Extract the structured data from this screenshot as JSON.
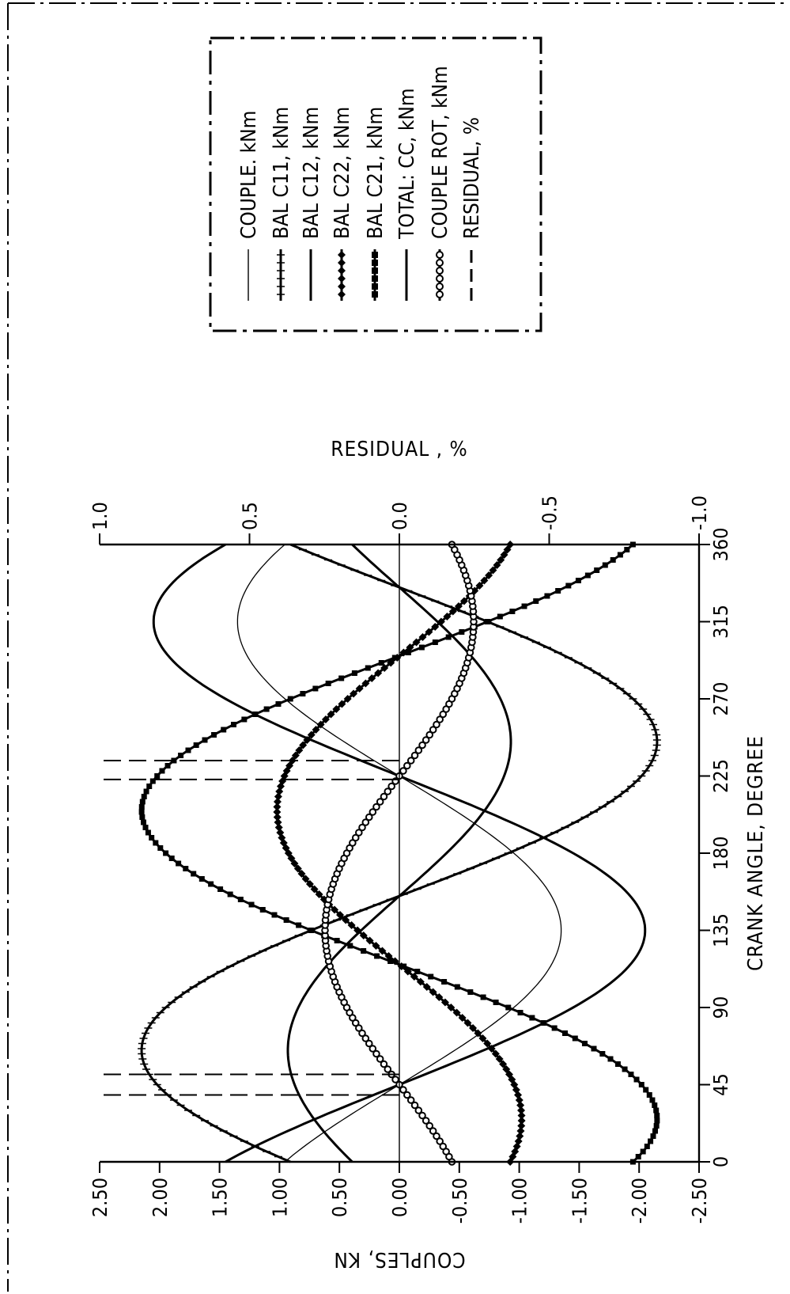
{
  "chart_data": {
    "type": "line",
    "xlabel": "CRANK ANGLE, DEGREE",
    "ylabel": "COUPLES, KN",
    "y2label": "RESIDUAL , %",
    "xlim": [
      0,
      360
    ],
    "ylim": [
      -2.5,
      2.5
    ],
    "y2lim": [
      -1.0,
      1.0
    ],
    "x_ticks": [
      "0",
      "45",
      "90",
      "135",
      "180",
      "225",
      "270",
      "315",
      "360"
    ],
    "y_ticks": [
      "2.50",
      "2.00",
      "1.50",
      "1.00",
      "0.50",
      "0.00",
      "-0.50",
      "-1.00",
      "-1.50",
      "-2.00",
      "-2.50"
    ],
    "y2_ticks": [
      "1.0",
      "0.5",
      "0.0",
      "-0.5",
      "-1.0"
    ],
    "grid": false,
    "legend_position": "top, outside plot",
    "series": [
      {
        "name": "COUPLE. kNm",
        "style": "thin",
        "amplitude": 1.35,
        "phase": 225,
        "color": "#000000"
      },
      {
        "name": "BAL C11, kNm",
        "style": "ticks",
        "amplitude": 2.15,
        "phase": 335,
        "color": "#000000"
      },
      {
        "name": "BAL C12, kNm",
        "style": "medium",
        "amplitude": 2.05,
        "phase": 225,
        "color": "#000000"
      },
      {
        "name": "BAL C22, kNm",
        "style": "diamonds",
        "amplitude": 1.02,
        "phase": 115,
        "color": "#000000"
      },
      {
        "name": "BAL C21, kNm",
        "style": "squares",
        "amplitude": 2.15,
        "phase": 115,
        "color": "#000000"
      },
      {
        "name": "TOTAL: CC, kNm",
        "style": "medium",
        "amplitude": 0.93,
        "phase": 335,
        "color": "#000000"
      },
      {
        "name": "COUPLE ROT, kNm",
        "style": "circles",
        "amplitude": 0.62,
        "phase": 45,
        "color": "#000000"
      },
      {
        "name": "RESIDUAL, %",
        "style": "dashed",
        "color": "#000000",
        "points": [
          [
            39,
            0
          ],
          [
            51,
            0
          ],
          [
            223,
            0
          ],
          [
            234,
            0
          ]
        ]
      }
    ],
    "x": [
      0,
      10,
      20,
      30,
      40,
      50,
      60,
      70,
      80,
      90,
      100,
      110,
      120,
      130,
      140,
      150,
      160,
      170,
      180,
      190,
      200,
      210,
      220,
      230,
      240,
      250,
      260,
      270,
      280,
      290,
      300,
      310,
      320,
      330,
      340,
      350,
      360
    ]
  }
}
